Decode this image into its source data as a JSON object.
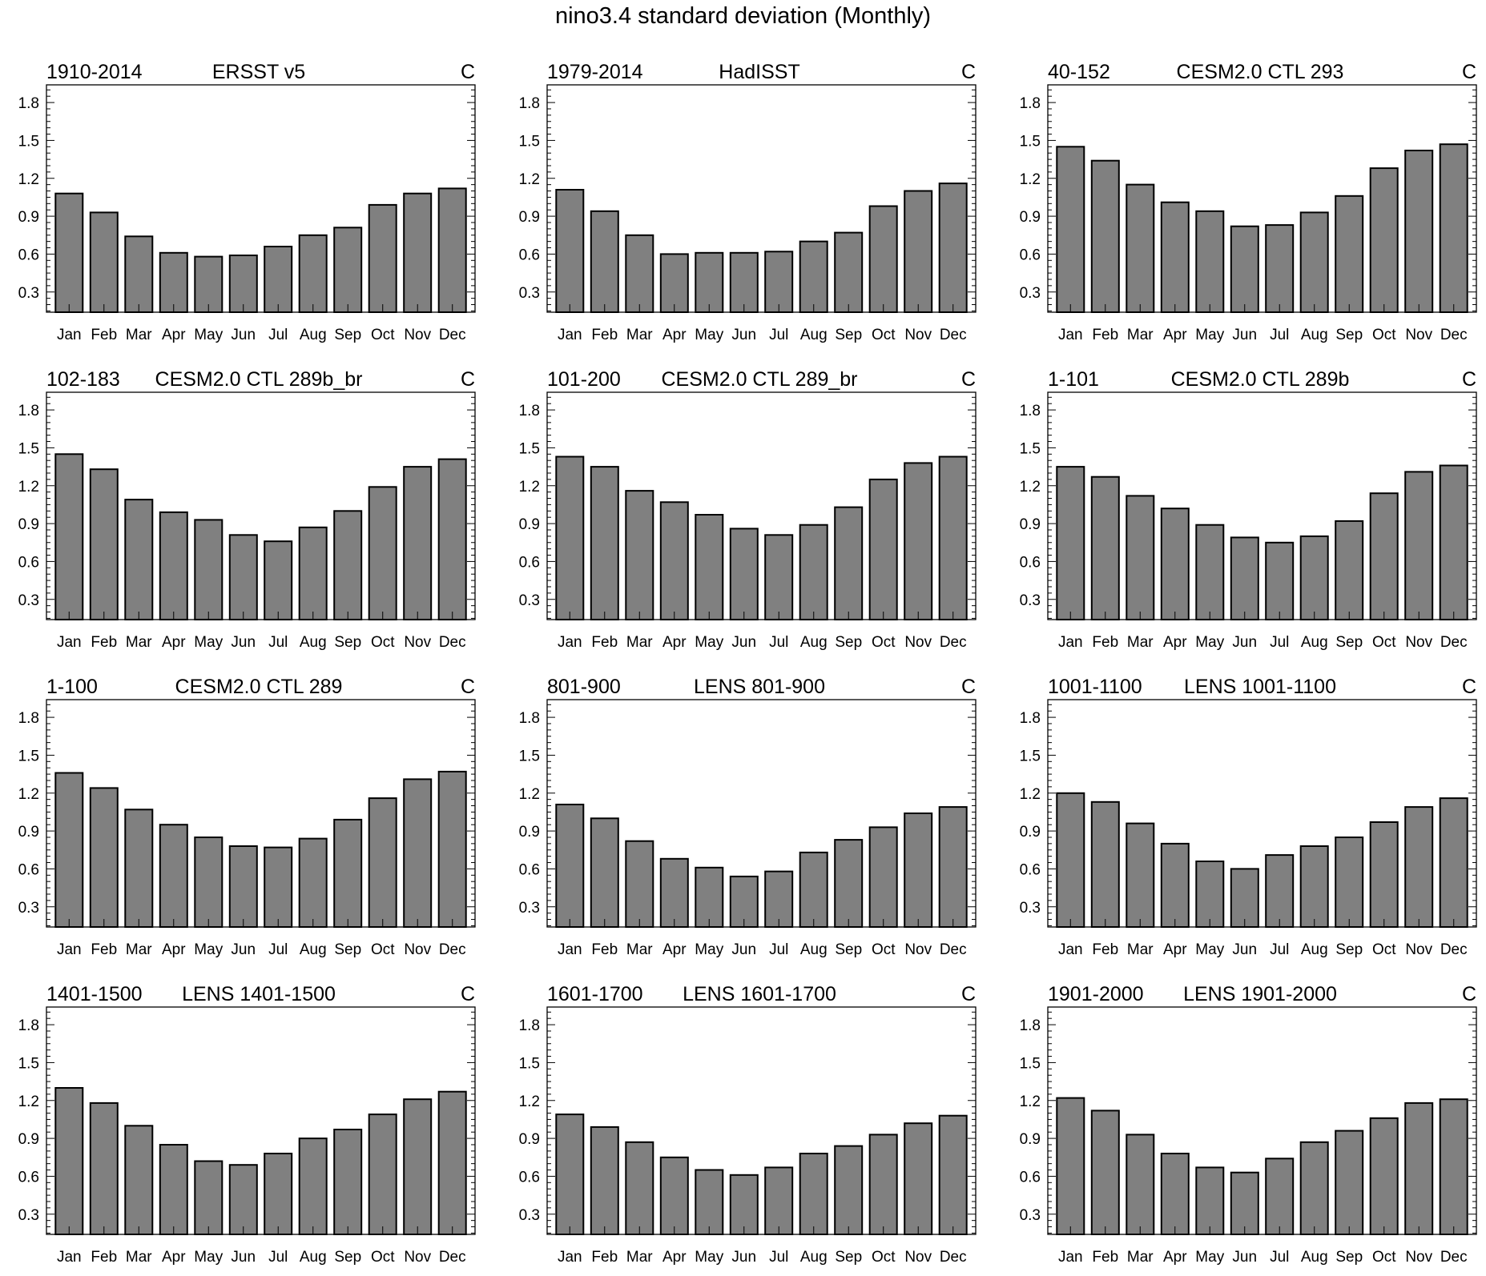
{
  "title": "nino3.4 standard deviation (Monthly)",
  "colors": {
    "bar_fill": "#808080",
    "bar_stroke": "#000000",
    "background": "#ffffff"
  },
  "chart_data": [
    {
      "type": "bar",
      "left_label": "1910-2014",
      "center_label": "ERSST v5",
      "right_label": "C",
      "categories": [
        "Jan",
        "Feb",
        "Mar",
        "Apr",
        "May",
        "Jun",
        "Jul",
        "Aug",
        "Sep",
        "Oct",
        "Nov",
        "Dec"
      ],
      "values": [
        1.08,
        0.93,
        0.74,
        0.61,
        0.58,
        0.59,
        0.66,
        0.75,
        0.81,
        0.99,
        1.08,
        1.12
      ],
      "ylim": [
        0.14,
        1.94
      ],
      "yticks": [
        0.3,
        0.6,
        0.9,
        1.2,
        1.5,
        1.8
      ],
      "xlabel": "",
      "ylabel": ""
    },
    {
      "type": "bar",
      "left_label": "1979-2014",
      "center_label": "HadISST",
      "right_label": "C",
      "categories": [
        "Jan",
        "Feb",
        "Mar",
        "Apr",
        "May",
        "Jun",
        "Jul",
        "Aug",
        "Sep",
        "Oct",
        "Nov",
        "Dec"
      ],
      "values": [
        1.11,
        0.94,
        0.75,
        0.6,
        0.61,
        0.61,
        0.62,
        0.7,
        0.77,
        0.98,
        1.1,
        1.16
      ],
      "ylim": [
        0.14,
        1.94
      ],
      "yticks": [
        0.3,
        0.6,
        0.9,
        1.2,
        1.5,
        1.8
      ],
      "xlabel": "",
      "ylabel": ""
    },
    {
      "type": "bar",
      "left_label": "40-152",
      "center_label": "CESM2.0 CTL 293",
      "right_label": "C",
      "categories": [
        "Jan",
        "Feb",
        "Mar",
        "Apr",
        "May",
        "Jun",
        "Jul",
        "Aug",
        "Sep",
        "Oct",
        "Nov",
        "Dec"
      ],
      "values": [
        1.45,
        1.34,
        1.15,
        1.01,
        0.94,
        0.82,
        0.83,
        0.93,
        1.06,
        1.28,
        1.42,
        1.47
      ],
      "ylim": [
        0.14,
        1.94
      ],
      "yticks": [
        0.3,
        0.6,
        0.9,
        1.2,
        1.5,
        1.8
      ],
      "xlabel": "",
      "ylabel": ""
    },
    {
      "type": "bar",
      "left_label": "102-183",
      "center_label": "CESM2.0 CTL 289b_br",
      "right_label": "C",
      "categories": [
        "Jan",
        "Feb",
        "Mar",
        "Apr",
        "May",
        "Jun",
        "Jul",
        "Aug",
        "Sep",
        "Oct",
        "Nov",
        "Dec"
      ],
      "values": [
        1.45,
        1.33,
        1.09,
        0.99,
        0.93,
        0.81,
        0.76,
        0.87,
        1.0,
        1.19,
        1.35,
        1.41
      ],
      "ylim": [
        0.14,
        1.94
      ],
      "yticks": [
        0.3,
        0.6,
        0.9,
        1.2,
        1.5,
        1.8
      ],
      "xlabel": "",
      "ylabel": ""
    },
    {
      "type": "bar",
      "left_label": "101-200",
      "center_label": "CESM2.0 CTL 289_br",
      "right_label": "C",
      "categories": [
        "Jan",
        "Feb",
        "Mar",
        "Apr",
        "May",
        "Jun",
        "Jul",
        "Aug",
        "Sep",
        "Oct",
        "Nov",
        "Dec"
      ],
      "values": [
        1.43,
        1.35,
        1.16,
        1.07,
        0.97,
        0.86,
        0.81,
        0.89,
        1.03,
        1.25,
        1.38,
        1.43
      ],
      "ylim": [
        0.14,
        1.94
      ],
      "yticks": [
        0.3,
        0.6,
        0.9,
        1.2,
        1.5,
        1.8
      ],
      "xlabel": "",
      "ylabel": ""
    },
    {
      "type": "bar",
      "left_label": "1-101",
      "center_label": "CESM2.0 CTL 289b",
      "right_label": "C",
      "categories": [
        "Jan",
        "Feb",
        "Mar",
        "Apr",
        "May",
        "Jun",
        "Jul",
        "Aug",
        "Sep",
        "Oct",
        "Nov",
        "Dec"
      ],
      "values": [
        1.35,
        1.27,
        1.12,
        1.02,
        0.89,
        0.79,
        0.75,
        0.8,
        0.92,
        1.14,
        1.31,
        1.36
      ],
      "ylim": [
        0.14,
        1.94
      ],
      "yticks": [
        0.3,
        0.6,
        0.9,
        1.2,
        1.5,
        1.8
      ],
      "xlabel": "",
      "ylabel": ""
    },
    {
      "type": "bar",
      "left_label": "1-100",
      "center_label": "CESM2.0 CTL 289",
      "right_label": "C",
      "categories": [
        "Jan",
        "Feb",
        "Mar",
        "Apr",
        "May",
        "Jun",
        "Jul",
        "Aug",
        "Sep",
        "Oct",
        "Nov",
        "Dec"
      ],
      "values": [
        1.36,
        1.24,
        1.07,
        0.95,
        0.85,
        0.78,
        0.77,
        0.84,
        0.99,
        1.16,
        1.31,
        1.37
      ],
      "ylim": [
        0.14,
        1.94
      ],
      "yticks": [
        0.3,
        0.6,
        0.9,
        1.2,
        1.5,
        1.8
      ],
      "xlabel": "",
      "ylabel": ""
    },
    {
      "type": "bar",
      "left_label": "801-900",
      "center_label": "LENS 801-900",
      "right_label": "C",
      "categories": [
        "Jan",
        "Feb",
        "Mar",
        "Apr",
        "May",
        "Jun",
        "Jul",
        "Aug",
        "Sep",
        "Oct",
        "Nov",
        "Dec"
      ],
      "values": [
        1.11,
        1.0,
        0.82,
        0.68,
        0.61,
        0.54,
        0.58,
        0.73,
        0.83,
        0.93,
        1.04,
        1.09
      ],
      "ylim": [
        0.14,
        1.94
      ],
      "yticks": [
        0.3,
        0.6,
        0.9,
        1.2,
        1.5,
        1.8
      ],
      "xlabel": "",
      "ylabel": ""
    },
    {
      "type": "bar",
      "left_label": "1001-1100",
      "center_label": "LENS 1001-1100",
      "right_label": "C",
      "categories": [
        "Jan",
        "Feb",
        "Mar",
        "Apr",
        "May",
        "Jun",
        "Jul",
        "Aug",
        "Sep",
        "Oct",
        "Nov",
        "Dec"
      ],
      "values": [
        1.2,
        1.13,
        0.96,
        0.8,
        0.66,
        0.6,
        0.71,
        0.78,
        0.85,
        0.97,
        1.09,
        1.16
      ],
      "ylim": [
        0.14,
        1.94
      ],
      "yticks": [
        0.3,
        0.6,
        0.9,
        1.2,
        1.5,
        1.8
      ],
      "xlabel": "",
      "ylabel": ""
    },
    {
      "type": "bar",
      "left_label": "1401-1500",
      "center_label": "LENS 1401-1500",
      "right_label": "C",
      "categories": [
        "Jan",
        "Feb",
        "Mar",
        "Apr",
        "May",
        "Jun",
        "Jul",
        "Aug",
        "Sep",
        "Oct",
        "Nov",
        "Dec"
      ],
      "values": [
        1.3,
        1.18,
        1.0,
        0.85,
        0.72,
        0.69,
        0.78,
        0.9,
        0.97,
        1.09,
        1.21,
        1.27
      ],
      "ylim": [
        0.14,
        1.94
      ],
      "yticks": [
        0.3,
        0.6,
        0.9,
        1.2,
        1.5,
        1.8
      ],
      "xlabel": "",
      "ylabel": ""
    },
    {
      "type": "bar",
      "left_label": "1601-1700",
      "center_label": "LENS 1601-1700",
      "right_label": "C",
      "categories": [
        "Jan",
        "Feb",
        "Mar",
        "Apr",
        "May",
        "Jun",
        "Jul",
        "Aug",
        "Sep",
        "Oct",
        "Nov",
        "Dec"
      ],
      "values": [
        1.09,
        0.99,
        0.87,
        0.75,
        0.65,
        0.61,
        0.67,
        0.78,
        0.84,
        0.93,
        1.02,
        1.08
      ],
      "ylim": [
        0.14,
        1.94
      ],
      "yticks": [
        0.3,
        0.6,
        0.9,
        1.2,
        1.5,
        1.8
      ],
      "xlabel": "",
      "ylabel": ""
    },
    {
      "type": "bar",
      "left_label": "1901-2000",
      "center_label": "LENS 1901-2000",
      "right_label": "C",
      "categories": [
        "Jan",
        "Feb",
        "Mar",
        "Apr",
        "May",
        "Jun",
        "Jul",
        "Aug",
        "Sep",
        "Oct",
        "Nov",
        "Dec"
      ],
      "values": [
        1.22,
        1.12,
        0.93,
        0.78,
        0.67,
        0.63,
        0.74,
        0.87,
        0.96,
        1.06,
        1.18,
        1.21
      ],
      "ylim": [
        0.14,
        1.94
      ],
      "yticks": [
        0.3,
        0.6,
        0.9,
        1.2,
        1.5,
        1.8
      ],
      "xlabel": "",
      "ylabel": ""
    }
  ]
}
